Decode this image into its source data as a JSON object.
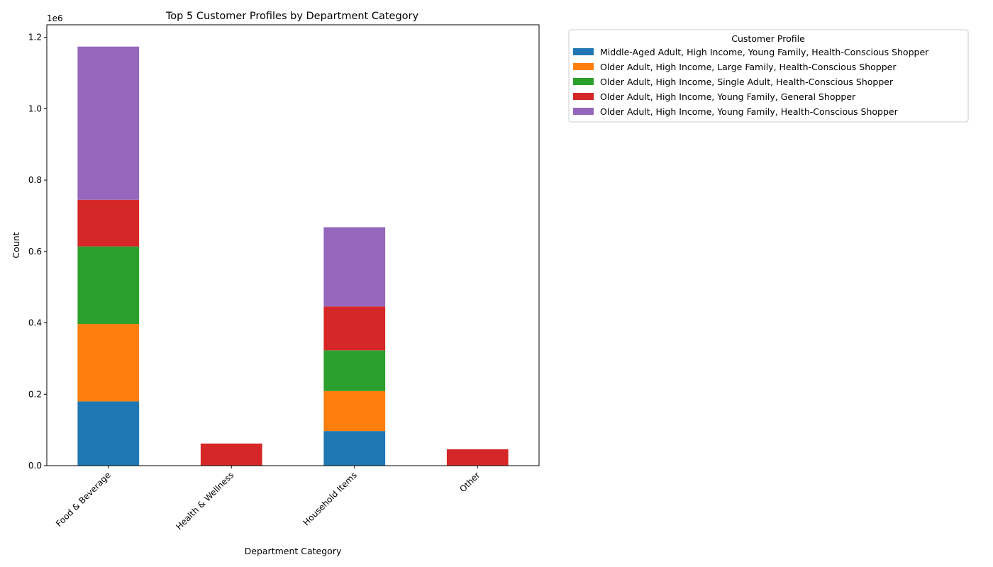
{
  "chart_data": {
    "type": "bar",
    "stacked": true,
    "title": "Top 5 Customer Profiles by Department Category",
    "xlabel": "Department Category",
    "ylabel": "Count",
    "y_scale_label": "1e6",
    "ylim": [
      0,
      1.235
    ],
    "yticks": [
      0.0,
      0.2,
      0.4,
      0.6,
      0.8,
      1.0,
      1.2
    ],
    "ytick_labels": [
      "0.0",
      "0.2",
      "0.4",
      "0.6",
      "0.8",
      "1.0",
      "1.2"
    ],
    "categories": [
      "Food & Beverage",
      "Health & Wellness",
      "Household Items",
      "Other"
    ],
    "series": [
      {
        "name": "Middle-Aged Adult, High Income, Young Family, Health-Conscious Shopper",
        "color": "#1f77b4",
        "values": [
          0.18,
          0,
          0.097,
          0
        ]
      },
      {
        "name": "Older Adult, High Income, Large Family, Health-Conscious Shopper",
        "color": "#ff7f0e",
        "values": [
          0.217,
          0,
          0.112,
          0
        ]
      },
      {
        "name": "Older Adult, High Income, Single Adult, Health-Conscious Shopper",
        "color": "#2ca02c",
        "values": [
          0.217,
          0,
          0.114,
          0
        ]
      },
      {
        "name": "Older Adult, High Income, Young Family, General Shopper",
        "color": "#d62728",
        "values": [
          0.131,
          0.062,
          0.123,
          0.046
        ]
      },
      {
        "name": "Older Adult, High Income, Young Family, Health-Conscious Shopper",
        "color": "#9467bd",
        "values": [
          0.429,
          0,
          0.222,
          0
        ]
      }
    ],
    "legend": {
      "title": "Customer Profile",
      "placement": "outside-top-right"
    },
    "grid": false
  }
}
